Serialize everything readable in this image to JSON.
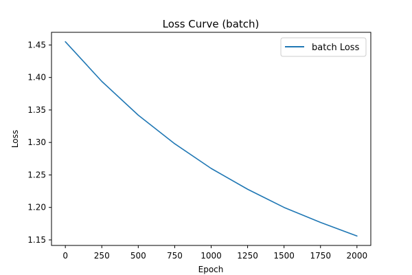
{
  "chart_data": {
    "type": "line",
    "title": "Loss Curve (batch)",
    "xlabel": "Epoch",
    "ylabel": "Loss",
    "xlim": [
      -95,
      2095
    ],
    "ylim": [
      1.1415,
      1.4695
    ],
    "xticks": [
      0,
      250,
      500,
      750,
      1000,
      1250,
      1500,
      1750,
      2000
    ],
    "xtick_labels": [
      "0",
      "250",
      "500",
      "750",
      "1000",
      "1250",
      "1500",
      "1750",
      "2000"
    ],
    "yticks": [
      1.15,
      1.2,
      1.25,
      1.3,
      1.35,
      1.4,
      1.45
    ],
    "ytick_labels": [
      "1.15",
      "1.20",
      "1.25",
      "1.30",
      "1.35",
      "1.40",
      "1.45"
    ],
    "grid": false,
    "legend_position": "top-right",
    "series": [
      {
        "name": "batch Loss",
        "color": "#1f77b4",
        "x": [
          0,
          250,
          500,
          750,
          1000,
          1250,
          1500,
          1750,
          2000
        ],
        "y": [
          1.455,
          1.394,
          1.342,
          1.298,
          1.26,
          1.228,
          1.2,
          1.177,
          1.156
        ]
      }
    ]
  }
}
